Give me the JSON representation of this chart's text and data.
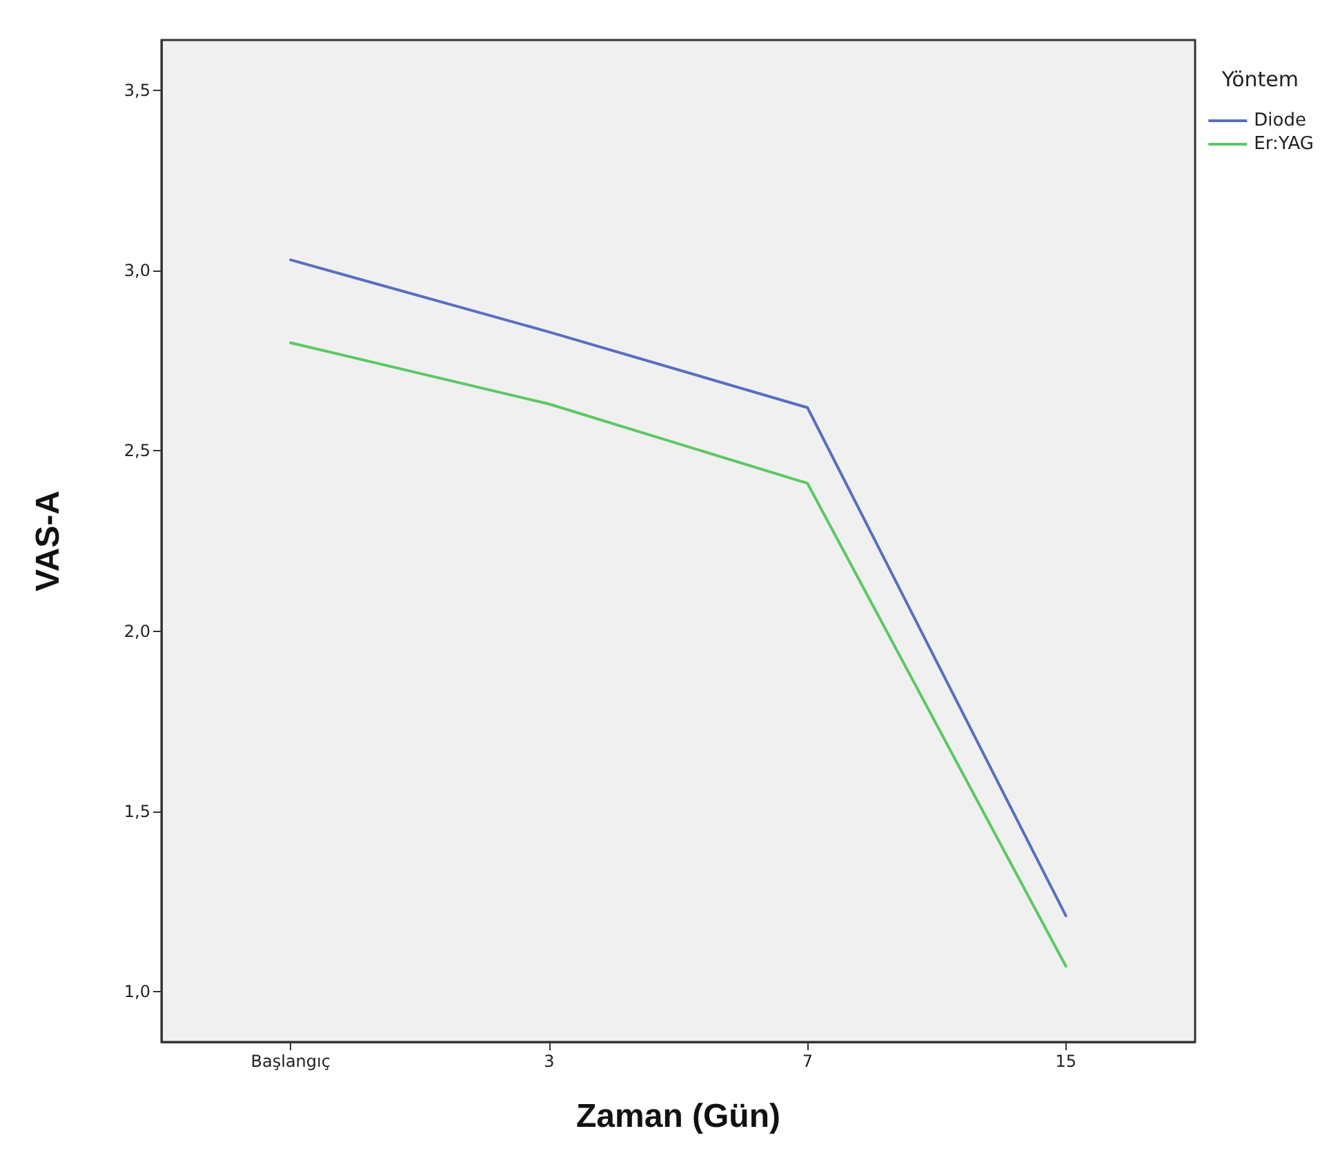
{
  "chart_data": {
    "type": "line",
    "xlabel": "Zaman (Gün)",
    "ylabel": "VAS-A",
    "legend_title": "Yöntem",
    "categories": [
      "Başlangıç",
      "3",
      "7",
      "15"
    ],
    "series": [
      {
        "name": "Diode",
        "color": "#5a6ec0",
        "values": [
          3.03,
          2.83,
          2.62,
          1.21
        ]
      },
      {
        "name": "Er:YAG",
        "color": "#5cc863",
        "values": [
          2.8,
          2.63,
          2.41,
          1.07
        ]
      }
    ],
    "ylim": [
      0.86,
      3.64
    ],
    "yticks": [
      {
        "value": 1,
        "label": "1,0"
      },
      {
        "value": 1.5,
        "label": "1,5"
      },
      {
        "value": 2,
        "label": "2,0"
      },
      {
        "value": 2.5,
        "label": "2,5"
      },
      {
        "value": 3,
        "label": "3,0"
      },
      {
        "value": 3.5,
        "label": "3,5"
      }
    ],
    "grid": false,
    "legend": "top right",
    "marker": "none",
    "line_style": "solid"
  }
}
